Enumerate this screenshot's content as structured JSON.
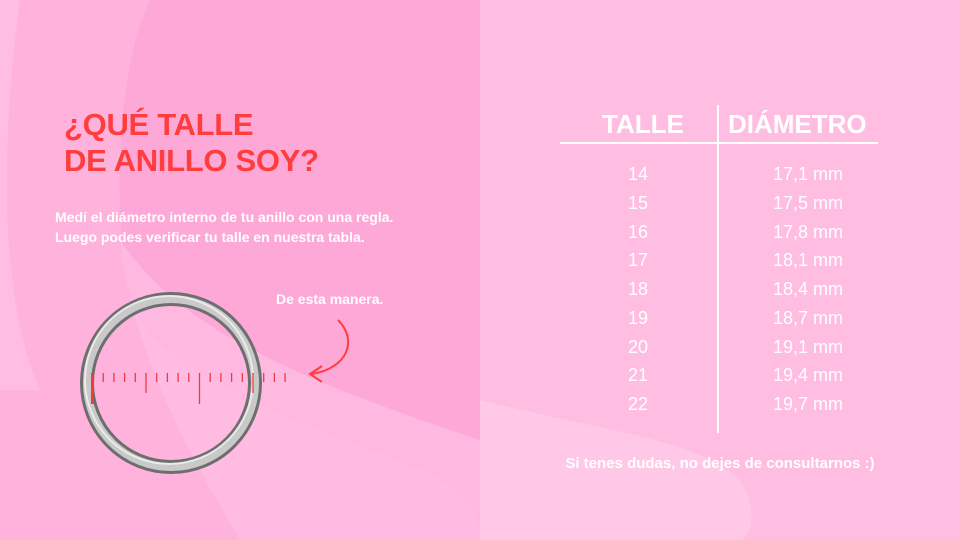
{
  "heading": {
    "line1": "¿QUÉ TALLE",
    "line2": "DE ANILLO SOY?"
  },
  "instructions": {
    "line1": "Medí el diámetro interno  de tu anillo con una regla.",
    "line2": "Luego podes verificar tu talle en nuestra tabla."
  },
  "annotation": "De esta manera.",
  "table": {
    "headers": [
      "TALLE",
      "DIÁMETRO"
    ],
    "rows": [
      {
        "size": "14",
        "diameter": "17,1 mm"
      },
      {
        "size": "15",
        "diameter": "17,5 mm"
      },
      {
        "size": "16",
        "diameter": "17,8 mm"
      },
      {
        "size": "17",
        "diameter": "18,1 mm"
      },
      {
        "size": "18",
        "diameter": "18,4 mm"
      },
      {
        "size": "19",
        "diameter": "18,7 mm"
      },
      {
        "size": "20",
        "diameter": "19,1 mm"
      },
      {
        "size": "21",
        "diameter": "19,4 mm"
      },
      {
        "size": "22",
        "diameter": "19,7 mm"
      }
    ]
  },
  "footer": "Si tenes dudas, no dejes de consultarnos :)",
  "colors": {
    "accent": "#ff3d3d",
    "left_bg": "#fea8d7",
    "right_bg": "#ffbde1",
    "text": "#ffffff"
  }
}
